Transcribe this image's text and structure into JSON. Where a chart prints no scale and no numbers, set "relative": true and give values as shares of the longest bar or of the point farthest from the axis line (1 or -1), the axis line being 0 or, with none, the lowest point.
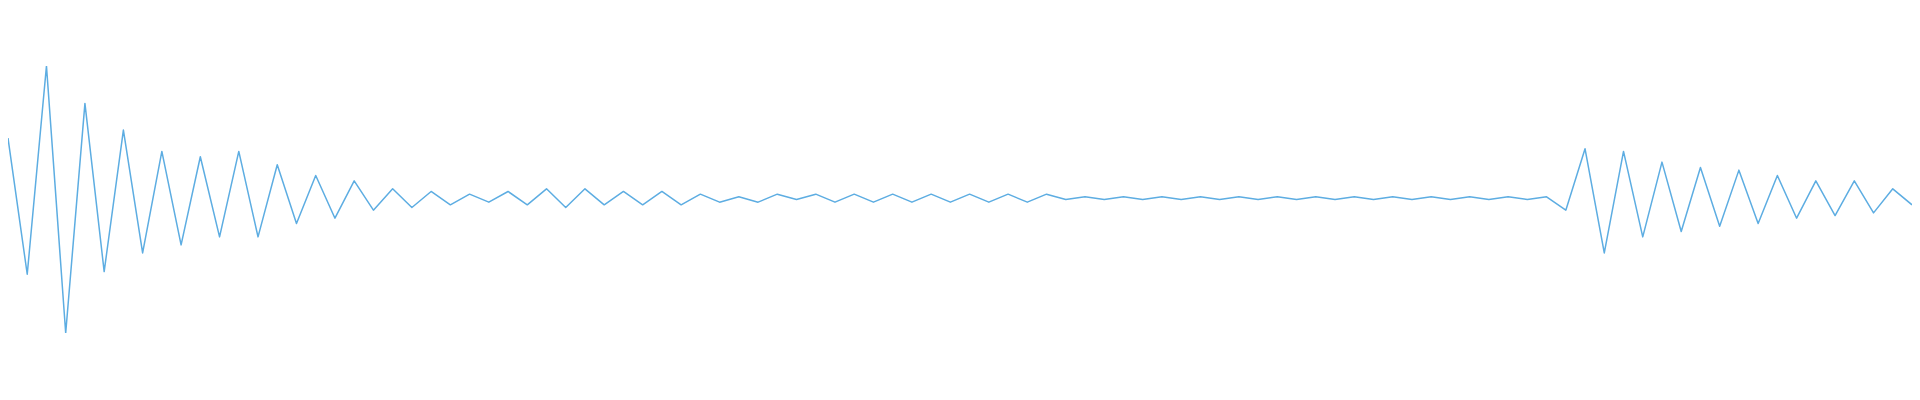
{
  "chart_data": {
    "type": "line",
    "relative": true,
    "categories": [
      null,
      null,
      null,
      null,
      null,
      null,
      null,
      null,
      null,
      null,
      null,
      null,
      null,
      null,
      null,
      null,
      null,
      null,
      null,
      null,
      null,
      null,
      null,
      null,
      null,
      null,
      null,
      null,
      null,
      null,
      null,
      null,
      null,
      null,
      null,
      null,
      null,
      null,
      null,
      null,
      null,
      null,
      null,
      null,
      null,
      null,
      null,
      null,
      null,
      null,
      null,
      null,
      null,
      null,
      null,
      null,
      null,
      null,
      null,
      null,
      null,
      null,
      null,
      null,
      null,
      null,
      null,
      null,
      null,
      null,
      null,
      null,
      null,
      null,
      null,
      null,
      null,
      null,
      null,
      null,
      null,
      null,
      null,
      null,
      null,
      null,
      null,
      null,
      null,
      null,
      null,
      null,
      null,
      null,
      null,
      null,
      null,
      null,
      null,
      null
    ],
    "series": [
      {
        "color": "#5dade2",
        "values": [
          0.73,
          0.22,
          1.0,
          0.0,
          0.86,
          0.23,
          0.76,
          0.3,
          0.68,
          0.33,
          0.66,
          0.36,
          0.68,
          0.36,
          0.63,
          0.41,
          0.59,
          0.43,
          0.57,
          0.46,
          0.54,
          0.47,
          0.53,
          0.48,
          0.52,
          0.49,
          0.53,
          0.48,
          0.54,
          0.47,
          0.54,
          0.48,
          0.53,
          0.48,
          0.53,
          0.48,
          0.52,
          0.49,
          0.51,
          0.49,
          0.52,
          0.5,
          0.52,
          0.49,
          0.52,
          0.49,
          0.52,
          0.49,
          0.52,
          0.49,
          0.52,
          0.49,
          0.52,
          0.49,
          0.52,
          0.5,
          0.51,
          0.5,
          0.51,
          0.5,
          0.51,
          0.5,
          0.51,
          0.5,
          0.51,
          0.5,
          0.51,
          0.5,
          0.51,
          0.5,
          0.51,
          0.5,
          0.51,
          0.5,
          0.51,
          0.5,
          0.51,
          0.5,
          0.51,
          0.5,
          0.51,
          0.46,
          0.69,
          0.3,
          0.68,
          0.36,
          0.64,
          0.38,
          0.62,
          0.4,
          0.61,
          0.41,
          0.59,
          0.43,
          0.57,
          0.44,
          0.57,
          0.45,
          0.54,
          0.48
        ]
      }
    ]
  }
}
